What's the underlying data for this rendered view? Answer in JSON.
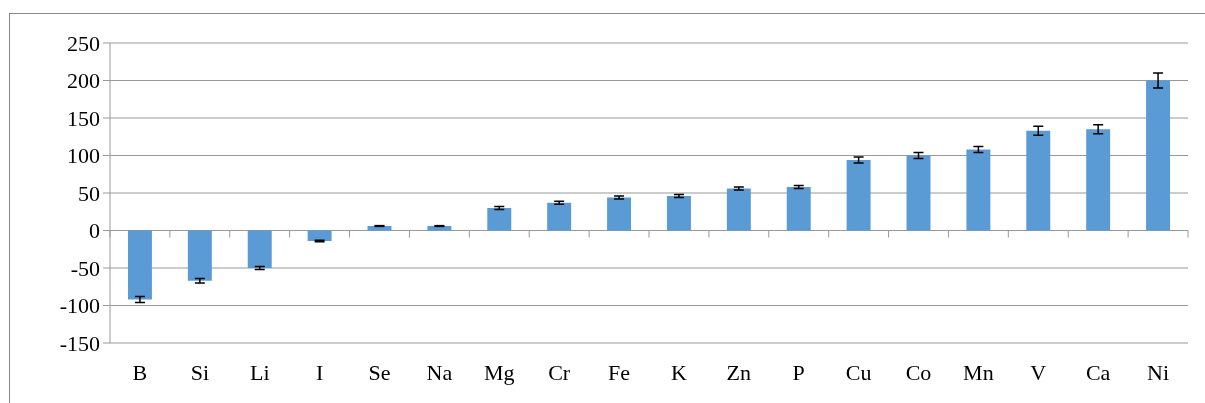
{
  "chart_data": {
    "type": "bar",
    "categories": [
      "B",
      "Si",
      "Li",
      "I",
      "Se",
      "Na",
      "Mg",
      "Cr",
      "Fe",
      "K",
      "Zn",
      "P",
      "Cu",
      "Co",
      "Mn",
      "V",
      "Ca",
      "Ni"
    ],
    "values": [
      -92,
      -67,
      -50,
      -14,
      6,
      6,
      30,
      37,
      44,
      46,
      56,
      58,
      94,
      100,
      108,
      133,
      135,
      200
    ],
    "errors": [
      4,
      3,
      2,
      1,
      0.5,
      0.5,
      2,
      2,
      2,
      2,
      2,
      2,
      4,
      4,
      4,
      6,
      6,
      10
    ],
    "color": "#5b9bd5",
    "ylim": [
      -150,
      250
    ],
    "yticks": [
      -150,
      -100,
      -50,
      0,
      50,
      100,
      150,
      200,
      250
    ],
    "grid": "y"
  }
}
